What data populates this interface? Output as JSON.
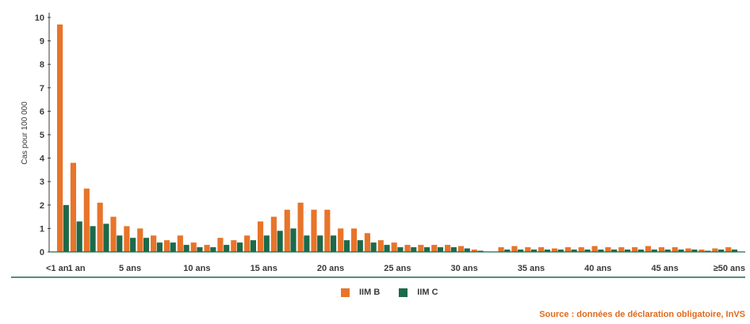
{
  "chart_data": {
    "type": "bar",
    "ylabel": "Cas pour 100 000",
    "ylim": [
      0,
      10
    ],
    "yticks": [
      0,
      1,
      2,
      3,
      4,
      5,
      6,
      7,
      8,
      9,
      10
    ],
    "categories": [
      "<1 an",
      "1 an",
      "2",
      "3",
      "4",
      "5",
      "6",
      "7",
      "8",
      "9",
      "10",
      "11",
      "12",
      "13",
      "14",
      "15",
      "16",
      "17",
      "18",
      "19",
      "20",
      "21",
      "22",
      "23",
      "24",
      "25",
      "26",
      "27",
      "28",
      "29",
      "30",
      "31",
      "32",
      "33",
      "34",
      "35",
      "36",
      "37",
      "38",
      "39",
      "40",
      "41",
      "42",
      "43",
      "44",
      "45",
      "46",
      "47",
      "48",
      "49",
      "≥50"
    ],
    "xtick_labels": [
      {
        "index": 0,
        "label": "<1 an"
      },
      {
        "index": 1,
        "label": "1 an"
      },
      {
        "index": 5,
        "label": "5 ans"
      },
      {
        "index": 10,
        "label": "10 ans"
      },
      {
        "index": 15,
        "label": "15 ans"
      },
      {
        "index": 20,
        "label": "20 ans"
      },
      {
        "index": 25,
        "label": "25 ans"
      },
      {
        "index": 30,
        "label": "30 ans"
      },
      {
        "index": 35,
        "label": "35 ans"
      },
      {
        "index": 40,
        "label": "40 ans"
      },
      {
        "index": 45,
        "label": "45 ans"
      },
      {
        "index": 50,
        "label": "≥50 ans"
      }
    ],
    "series": [
      {
        "name": "IIM B",
        "color": "#e8742a",
        "values": [
          9.7,
          3.8,
          2.7,
          2.1,
          1.5,
          1.1,
          1.0,
          0.7,
          0.5,
          0.7,
          0.4,
          0.3,
          0.6,
          0.5,
          0.7,
          1.3,
          1.5,
          1.8,
          2.1,
          1.8,
          1.8,
          1.0,
          1.0,
          0.8,
          0.5,
          0.4,
          0.3,
          0.3,
          0.3,
          0.3,
          0.25,
          0.1,
          0.0,
          0.2,
          0.25,
          0.2,
          0.2,
          0.15,
          0.2,
          0.2,
          0.25,
          0.2,
          0.2,
          0.2,
          0.25,
          0.2,
          0.2,
          0.15,
          0.1,
          0.15,
          0.2
        ]
      },
      {
        "name": "IIM C",
        "color": "#1c6a4a",
        "values": [
          2.0,
          1.3,
          1.1,
          1.2,
          0.7,
          0.6,
          0.6,
          0.4,
          0.4,
          0.3,
          0.2,
          0.2,
          0.3,
          0.4,
          0.5,
          0.7,
          0.9,
          1.0,
          0.7,
          0.7,
          0.7,
          0.5,
          0.5,
          0.4,
          0.3,
          0.2,
          0.2,
          0.2,
          0.2,
          0.2,
          0.15,
          0.05,
          0.0,
          0.1,
          0.1,
          0.1,
          0.1,
          0.1,
          0.1,
          0.1,
          0.1,
          0.1,
          0.1,
          0.1,
          0.1,
          0.1,
          0.1,
          0.1,
          0.05,
          0.1,
          0.1
        ]
      }
    ],
    "source": "Source : données de déclaration obligatoire, InVS"
  }
}
